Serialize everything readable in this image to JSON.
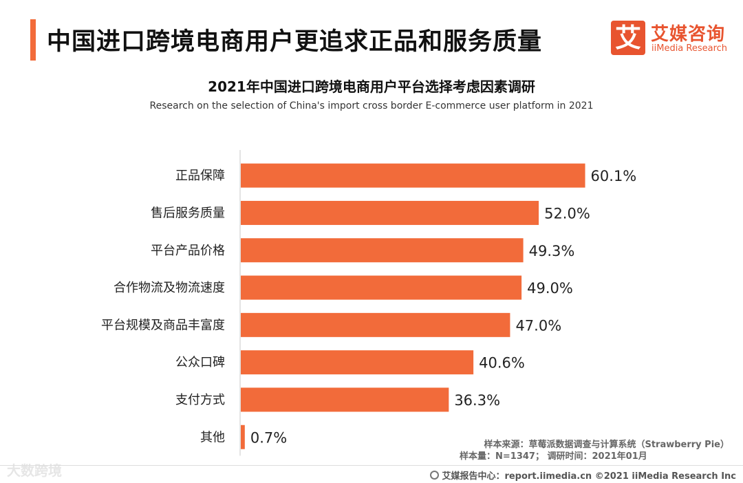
{
  "header": {
    "title": "中国进口跨境电商用户更追求正品和服务质量",
    "logo_mark": "艾",
    "logo_cn": "艾媒咨询",
    "logo_en": "iiMedia Research"
  },
  "colors": {
    "accent": "#f26b3a",
    "bar": "#f26b3a",
    "logo": "#e8542f"
  },
  "chart_data": {
    "type": "bar",
    "orientation": "horizontal",
    "title": "2021年中国进口跨境电商用户平台选择考虑因素调研",
    "subtitle": "Research on the selection of China's import cross border E-commerce user platform in 2021",
    "categories": [
      "正品保障",
      "售后服务质量",
      "平台产品价格",
      "合作物流及物流速度",
      "平台规模及商品丰富度",
      "公众口碑",
      "支付方式",
      "其他"
    ],
    "values": [
      60.1,
      52.0,
      49.3,
      49.0,
      47.0,
      40.6,
      36.3,
      0.7
    ],
    "value_labels": [
      "60.1%",
      "52.0%",
      "49.3%",
      "49.0%",
      "47.0%",
      "40.6%",
      "36.3%",
      "0.7%"
    ],
    "unit": "%",
    "xlim": [
      0,
      70
    ],
    "grid": false,
    "legend": "none"
  },
  "notes": {
    "source": "样本来源：草莓派数据调查与计算系统（Strawberry Pie）",
    "sample": "样本量：N=1347；  调研时间：2021年01月"
  },
  "footer": {
    "text": "艾媒报告中心：report.iimedia.cn   ©2021  iiMedia Research  Inc",
    "icon": "globe-icon"
  },
  "watermark": "大数跨境"
}
